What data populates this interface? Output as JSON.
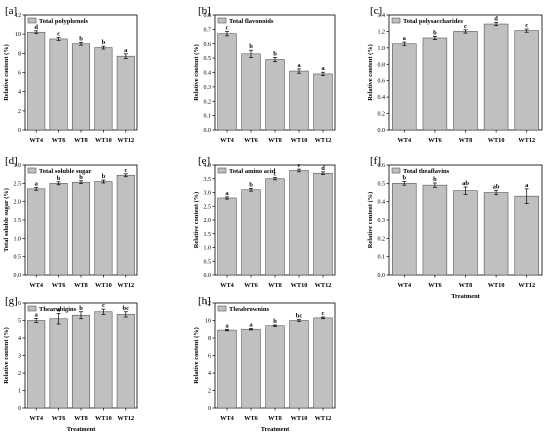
{
  "x_axis_title": "Treatment",
  "colors": {
    "bar_fill": "#c0c0c0",
    "bar_stroke": "#555555",
    "axis": "#000000"
  },
  "chart_data": [
    {
      "type": "bar",
      "panel": "[a]",
      "legend": "Total polyphenols",
      "ylabel": "Relative content (%)",
      "xlabel": "",
      "categories": [
        "WT4",
        "WT6",
        "WT8",
        "WT10",
        "WT12"
      ],
      "values": [
        10.2,
        9.5,
        9.0,
        8.6,
        7.7
      ],
      "errors": [
        0.15,
        0.15,
        0.15,
        0.15,
        0.25
      ],
      "significance": [
        "d",
        "c",
        "b",
        "b",
        "a"
      ],
      "ylim": [
        0,
        12
      ],
      "yticks": [
        0,
        2,
        4,
        6,
        8,
        10,
        12
      ],
      "ytick_labels": [
        "0",
        "2",
        "4",
        "6",
        "8",
        "10",
        "12"
      ]
    },
    {
      "type": "bar",
      "panel": "[b]",
      "legend": "Total flavonoids",
      "ylabel": "Relative content (%)",
      "xlabel": "",
      "categories": [
        "WT4",
        "WT6",
        "WT8",
        "WT10",
        "WT12"
      ],
      "values": [
        0.67,
        0.53,
        0.49,
        0.41,
        0.39
      ],
      "errors": [
        0.015,
        0.025,
        0.015,
        0.015,
        0.012
      ],
      "significance": [
        "c",
        "b",
        "b",
        "a",
        "a"
      ],
      "ylim": [
        0,
        0.8
      ],
      "yticks": [
        0,
        0.1,
        0.2,
        0.3,
        0.4,
        0.5,
        0.6,
        0.7,
        0.8
      ],
      "ytick_labels": [
        "0.0",
        "0.1",
        "0.2",
        "0.3",
        "0.4",
        "0.5",
        "0.6",
        "0.7",
        "0.8"
      ]
    },
    {
      "type": "bar",
      "panel": "[c]",
      "legend": "Total polysaccharides",
      "ylabel": "Relative content (%)",
      "xlabel": "",
      "categories": [
        "WT4",
        "WT6",
        "WT8",
        "WT10",
        "WT12"
      ],
      "values": [
        1.05,
        1.12,
        1.2,
        1.29,
        1.21
      ],
      "errors": [
        0.02,
        0.02,
        0.02,
        0.02,
        0.02
      ],
      "significance": [
        "a",
        "b",
        "c",
        "d",
        "c"
      ],
      "ylim": [
        0,
        1.4
      ],
      "yticks": [
        0,
        0.2,
        0.4,
        0.6,
        0.8,
        1.0,
        1.2,
        1.4
      ],
      "ytick_labels": [
        "0.0",
        "0.2",
        "0.4",
        "0.6",
        "0.8",
        "1.0",
        "1.2",
        "1.4"
      ]
    },
    {
      "type": "bar",
      "panel": "[d]",
      "legend": "Total soluble sugar",
      "ylabel": "Total soluble sugar (%)",
      "xlabel": "",
      "categories": [
        "WT4",
        "WT6",
        "WT8",
        "WT10",
        "WT12"
      ],
      "values": [
        2.35,
        2.5,
        2.53,
        2.55,
        2.72
      ],
      "errors": [
        0.04,
        0.04,
        0.04,
        0.04,
        0.04
      ],
      "significance": [
        "a",
        "b",
        "b",
        "b",
        "c"
      ],
      "ylim": [
        0,
        3.0
      ],
      "yticks": [
        0,
        0.5,
        1.0,
        1.5,
        2.0,
        2.5,
        3.0
      ],
      "ytick_labels": [
        "0.0",
        "0.5",
        "1.0",
        "1.5",
        "2.0",
        "2.5",
        "3.0"
      ]
    },
    {
      "type": "bar",
      "panel": "[e]",
      "legend": "Total amino acid",
      "ylabel": "Relative content (%)",
      "xlabel": "",
      "categories": [
        "WT4",
        "WT6",
        "WT8",
        "WT10",
        "WT12"
      ],
      "values": [
        2.8,
        3.1,
        3.5,
        3.8,
        3.7
      ],
      "errors": [
        0.04,
        0.05,
        0.04,
        0.05,
        0.05
      ],
      "significance": [
        "a",
        "b",
        "c",
        "e",
        "d"
      ],
      "ylim": [
        0,
        4.0
      ],
      "yticks": [
        0,
        0.5,
        1.0,
        1.5,
        2.0,
        2.5,
        3.0,
        3.5,
        4.0
      ],
      "ytick_labels": [
        "0.0",
        "0.5",
        "1.0",
        "1.5",
        "2.0",
        "2.5",
        "3.0",
        "3.5",
        "4.0"
      ]
    },
    {
      "type": "bar",
      "panel": "[f]",
      "legend": "Total theaflavins",
      "ylabel": "Relative content (%)",
      "xlabel": "Treatment",
      "categories": [
        "WT4",
        "WT6",
        "WT8",
        "WT10",
        "WT12"
      ],
      "values": [
        0.5,
        0.49,
        0.46,
        0.45,
        0.43
      ],
      "errors": [
        0.01,
        0.012,
        0.02,
        0.012,
        0.04
      ],
      "significance": [
        "b",
        "b",
        "ab",
        "ab",
        "a"
      ],
      "ylim": [
        0,
        0.6
      ],
      "yticks": [
        0,
        0.1,
        0.2,
        0.3,
        0.4,
        0.5,
        0.6
      ],
      "ytick_labels": [
        "0.0",
        "0.1",
        "0.2",
        "0.3",
        "0.4",
        "0.5",
        "0.6"
      ]
    },
    {
      "type": "bar",
      "panel": "[g]",
      "legend": "Thearubigins",
      "ylabel": "Relative content (%)",
      "xlabel": "Treatment",
      "categories": [
        "WT4",
        "WT6",
        "WT8",
        "WT10",
        "WT12"
      ],
      "values": [
        5.0,
        5.1,
        5.3,
        5.5,
        5.35
      ],
      "errors": [
        0.12,
        0.3,
        0.2,
        0.15,
        0.15
      ],
      "significance": [
        "a",
        "a",
        "b",
        "c",
        "bc"
      ],
      "ylim": [
        0,
        6
      ],
      "yticks": [
        0,
        1,
        2,
        3,
        4,
        5,
        6
      ],
      "ytick_labels": [
        "0",
        "1",
        "2",
        "3",
        "4",
        "5",
        "6"
      ]
    },
    {
      "type": "bar",
      "panel": "[h]",
      "legend": "Theabrownins",
      "ylabel": "Relative content (%)",
      "xlabel": "Treatment",
      "categories": [
        "WT4",
        "WT6",
        "WT8",
        "WT10",
        "WT12"
      ],
      "values": [
        8.9,
        9.0,
        9.4,
        10.0,
        10.3
      ],
      "errors": [
        0.08,
        0.08,
        0.08,
        0.1,
        0.1
      ],
      "significance": [
        "a",
        "a",
        "b",
        "bc",
        "c"
      ],
      "ylim": [
        0,
        12
      ],
      "yticks": [
        0,
        2,
        4,
        6,
        8,
        10,
        12
      ],
      "ytick_labels": [
        "0",
        "2",
        "4",
        "6",
        "8",
        "10",
        "12"
      ]
    }
  ]
}
